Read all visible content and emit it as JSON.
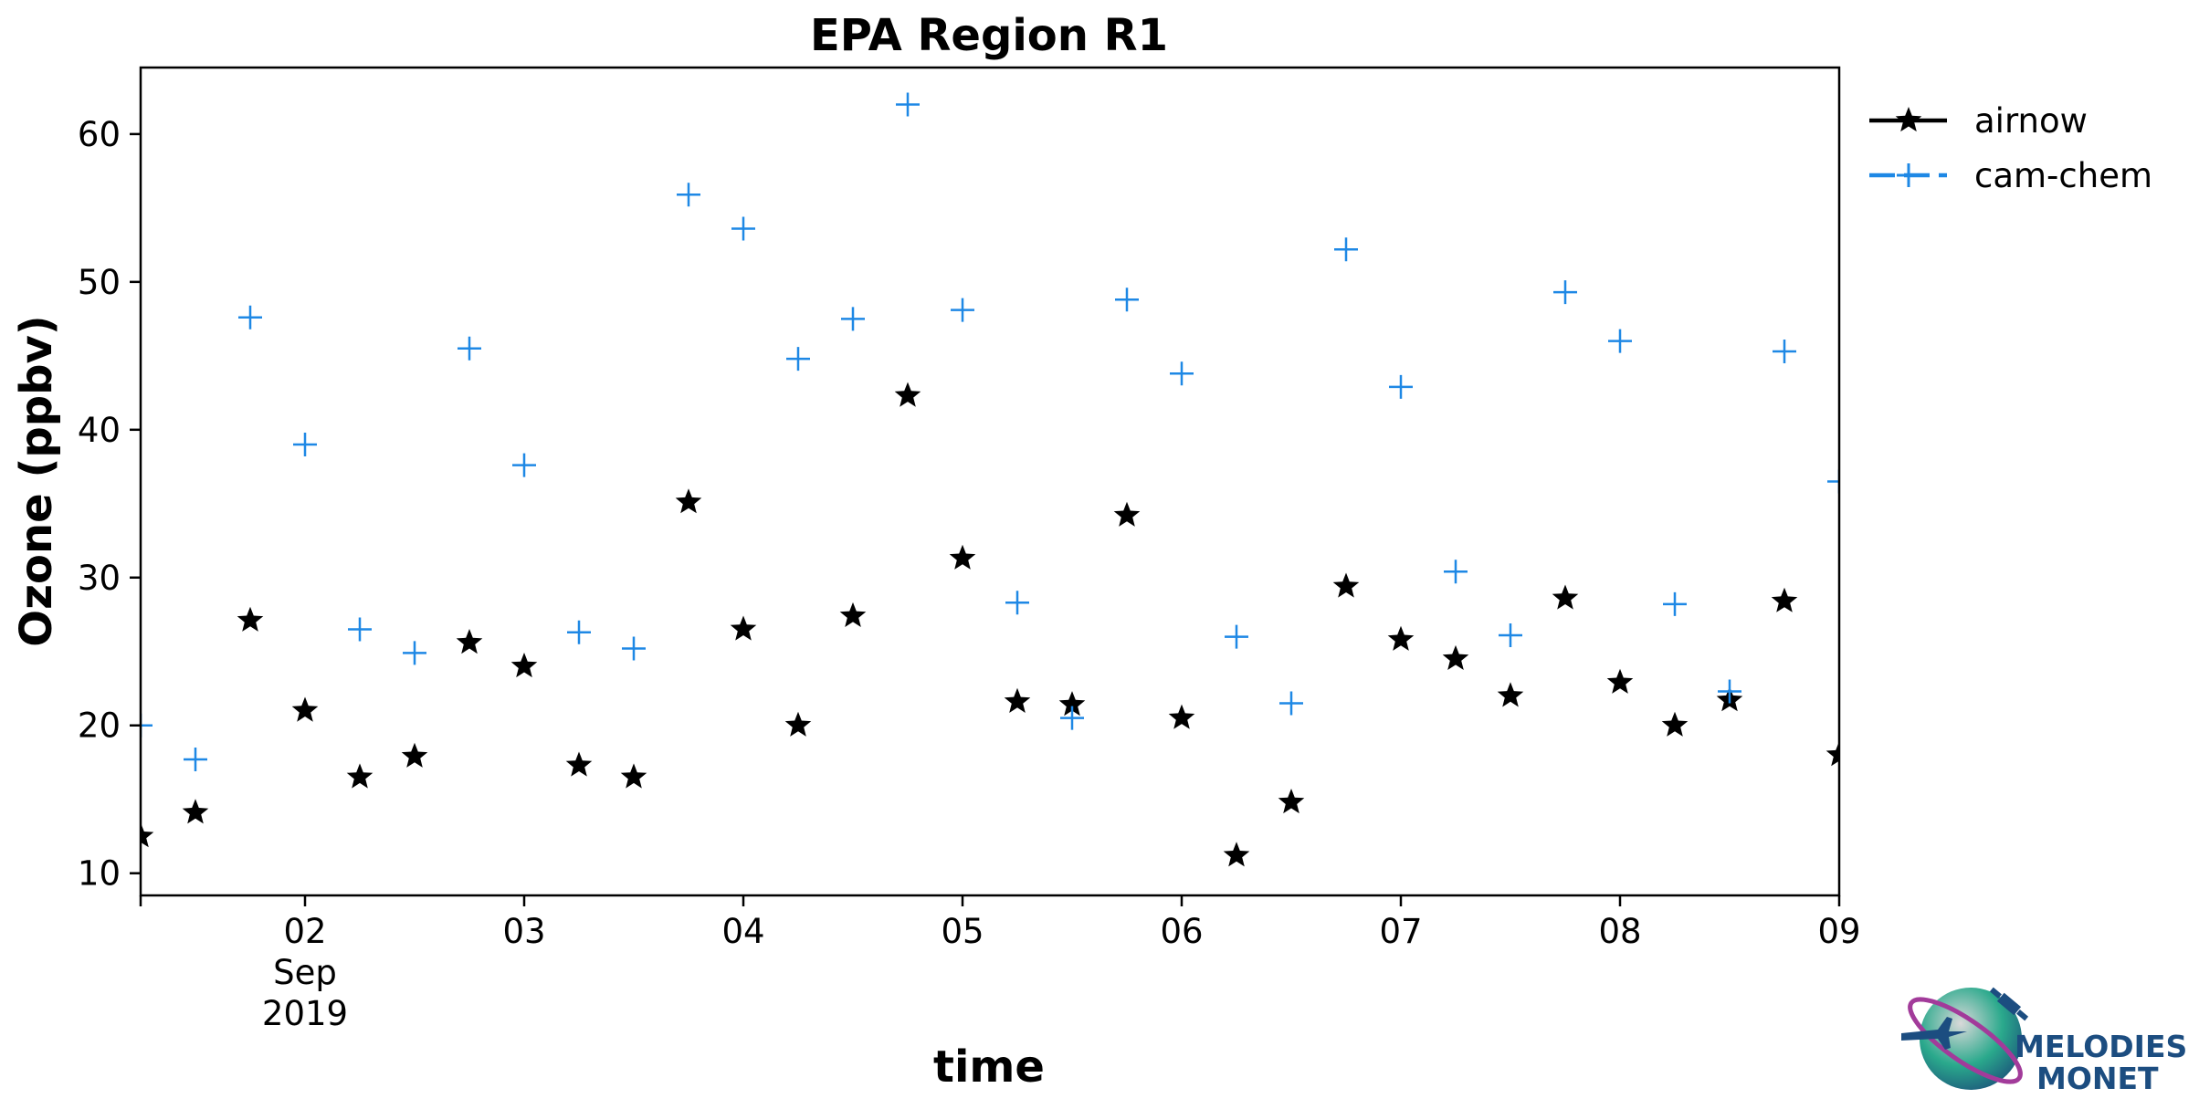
{
  "chart_data": {
    "type": "scatter",
    "title": "EPA Region R1",
    "xlabel": "time",
    "ylabel": "Ozone (ppbv)",
    "xlim": [
      "2019-09-01 06:00",
      "2019-09-09 00:00"
    ],
    "ylim": [
      8.5,
      64.5
    ],
    "yticks": [
      10,
      20,
      30,
      40,
      50,
      60
    ],
    "xticks": [
      {
        "x": "2019-09-02",
        "label": "02",
        "sub": [
          "Sep",
          "2019"
        ]
      },
      {
        "x": "2019-09-03",
        "label": "03"
      },
      {
        "x": "2019-09-04",
        "label": "04"
      },
      {
        "x": "2019-09-05",
        "label": "05"
      },
      {
        "x": "2019-09-06",
        "label": "06"
      },
      {
        "x": "2019-09-07",
        "label": "07"
      },
      {
        "x": "2019-09-08",
        "label": "08"
      },
      {
        "x": "2019-09-09",
        "label": "09"
      }
    ],
    "legend_position": "outside-right-top",
    "grid": false,
    "x": [
      "2019-09-01 06:00",
      "2019-09-01 12:00",
      "2019-09-01 18:00",
      "2019-09-02 00:00",
      "2019-09-02 06:00",
      "2019-09-02 12:00",
      "2019-09-02 18:00",
      "2019-09-03 00:00",
      "2019-09-03 06:00",
      "2019-09-03 12:00",
      "2019-09-03 18:00",
      "2019-09-04 00:00",
      "2019-09-04 06:00",
      "2019-09-04 12:00",
      "2019-09-04 18:00",
      "2019-09-05 00:00",
      "2019-09-05 06:00",
      "2019-09-05 12:00",
      "2019-09-05 18:00",
      "2019-09-06 00:00",
      "2019-09-06 06:00",
      "2019-09-06 12:00",
      "2019-09-06 18:00",
      "2019-09-07 00:00",
      "2019-09-07 06:00",
      "2019-09-07 12:00",
      "2019-09-07 18:00",
      "2019-09-08 00:00",
      "2019-09-08 06:00",
      "2019-09-08 12:00",
      "2019-09-08 18:00",
      "2019-09-09 00:00"
    ],
    "series": [
      {
        "name": "airnow",
        "color": "#000000",
        "marker": "star",
        "line": "solid",
        "values": [
          12.5,
          14.1,
          27.1,
          21.0,
          16.5,
          17.9,
          25.6,
          24.0,
          17.3,
          16.5,
          35.1,
          26.5,
          20.0,
          27.4,
          42.3,
          31.3,
          21.6,
          21.4,
          34.2,
          20.5,
          11.2,
          14.8,
          29.4,
          25.8,
          24.5,
          22.0,
          28.6,
          22.9,
          20.0,
          21.7,
          28.4,
          18.0
        ]
      },
      {
        "name": "cam-chem",
        "color": "#1e88e5",
        "marker": "plus",
        "line": "dashed",
        "values": [
          20.0,
          17.7,
          47.6,
          39.0,
          26.5,
          24.9,
          45.5,
          37.6,
          26.3,
          25.2,
          55.9,
          53.6,
          44.8,
          47.5,
          62.0,
          48.1,
          28.3,
          20.5,
          48.8,
          43.8,
          26.0,
          21.5,
          52.2,
          42.9,
          30.4,
          26.1,
          49.3,
          46.0,
          28.2,
          22.3,
          45.3,
          36.5
        ]
      }
    ]
  },
  "logo": {
    "line1": "MELODIES",
    "line2": "MONET"
  }
}
